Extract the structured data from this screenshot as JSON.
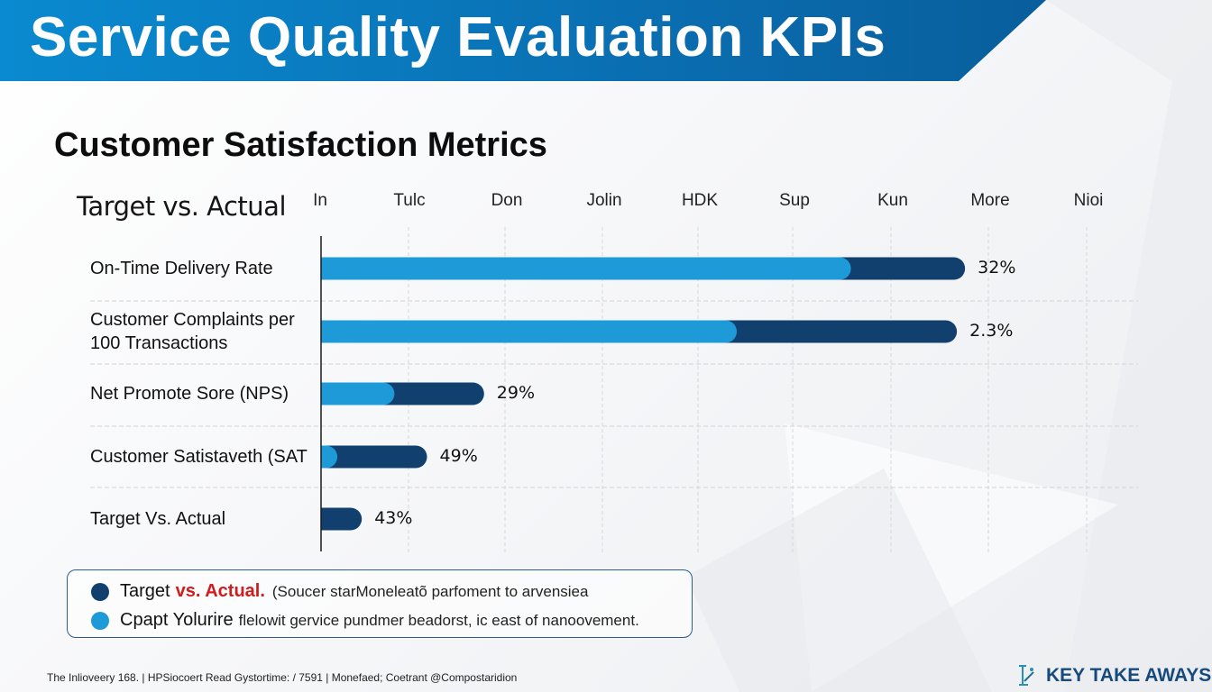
{
  "header": {
    "title": "Service Quality Evaluation KPIs"
  },
  "subtitle": "Customer Satisfaction Metrics",
  "section_label": "Target vs. Actual",
  "colors": {
    "header_blue": "#0a7cc2",
    "target_light": "#1e9ad8",
    "actual_dark": "#11406f",
    "legend_red": "#d01c1c",
    "brand_blue": "#174a7c"
  },
  "chart_data": {
    "type": "bar",
    "orientation": "horizontal",
    "stacked": true,
    "title": "Target vs. Actual",
    "column_labels": [
      "In",
      "Tulc",
      "Don",
      "Jolin",
      "HDK",
      "Sup",
      "Kun",
      "More",
      "Nioi"
    ],
    "categories": [
      "On-Time Delivery Rate",
      "Customer Complaints per 100 Transactions",
      "Net Promote Sore (NPS)",
      "Customer Satistaveth (SAT",
      "Target Vs. Actual"
    ],
    "category_lines": [
      [
        "On-Time Delivery Rate"
      ],
      [
        "Customer Complaints per",
        "100 Transactions"
      ],
      [
        "Net Promote Sore (NPS)"
      ],
      [
        "Customer Satistaveth (SAT"
      ],
      [
        "Target Vs. Actual"
      ]
    ],
    "series": [
      {
        "name": "Target",
        "color": "#1e9ad8",
        "values": [
          65,
          51,
          9,
          2,
          0
        ]
      },
      {
        "name": "Actual",
        "color": "#11406f",
        "values": [
          79,
          78,
          20,
          13,
          5
        ]
      }
    ],
    "data_labels": [
      "32%",
      "2.3%",
      "29%",
      "49%",
      "43%"
    ],
    "xlim": [
      0,
      100
    ],
    "grid": true,
    "legend": "bottom-left"
  },
  "legend": {
    "items": [
      {
        "strong": "Target",
        "highlight": "vs. Actual.",
        "text": "(Soucer starMoneleatõ parfoment to arvensiea",
        "color": "#11406f"
      },
      {
        "strong": "Cpapt Yolurire",
        "highlight": "",
        "text": "flelowit gervice pundmer beadorst, ic east of nanoovement.",
        "color": "#1e9ad8"
      }
    ]
  },
  "footer": {
    "text": "The Inlioveery 168. | HPSiocoert Read Gystortime: / 7591 | Monefaed;  Coetrant @Compostaridion"
  },
  "brand": {
    "label": "KEY TAKE AWAYS",
    "icon": "key-takeaways-logo-icon"
  }
}
